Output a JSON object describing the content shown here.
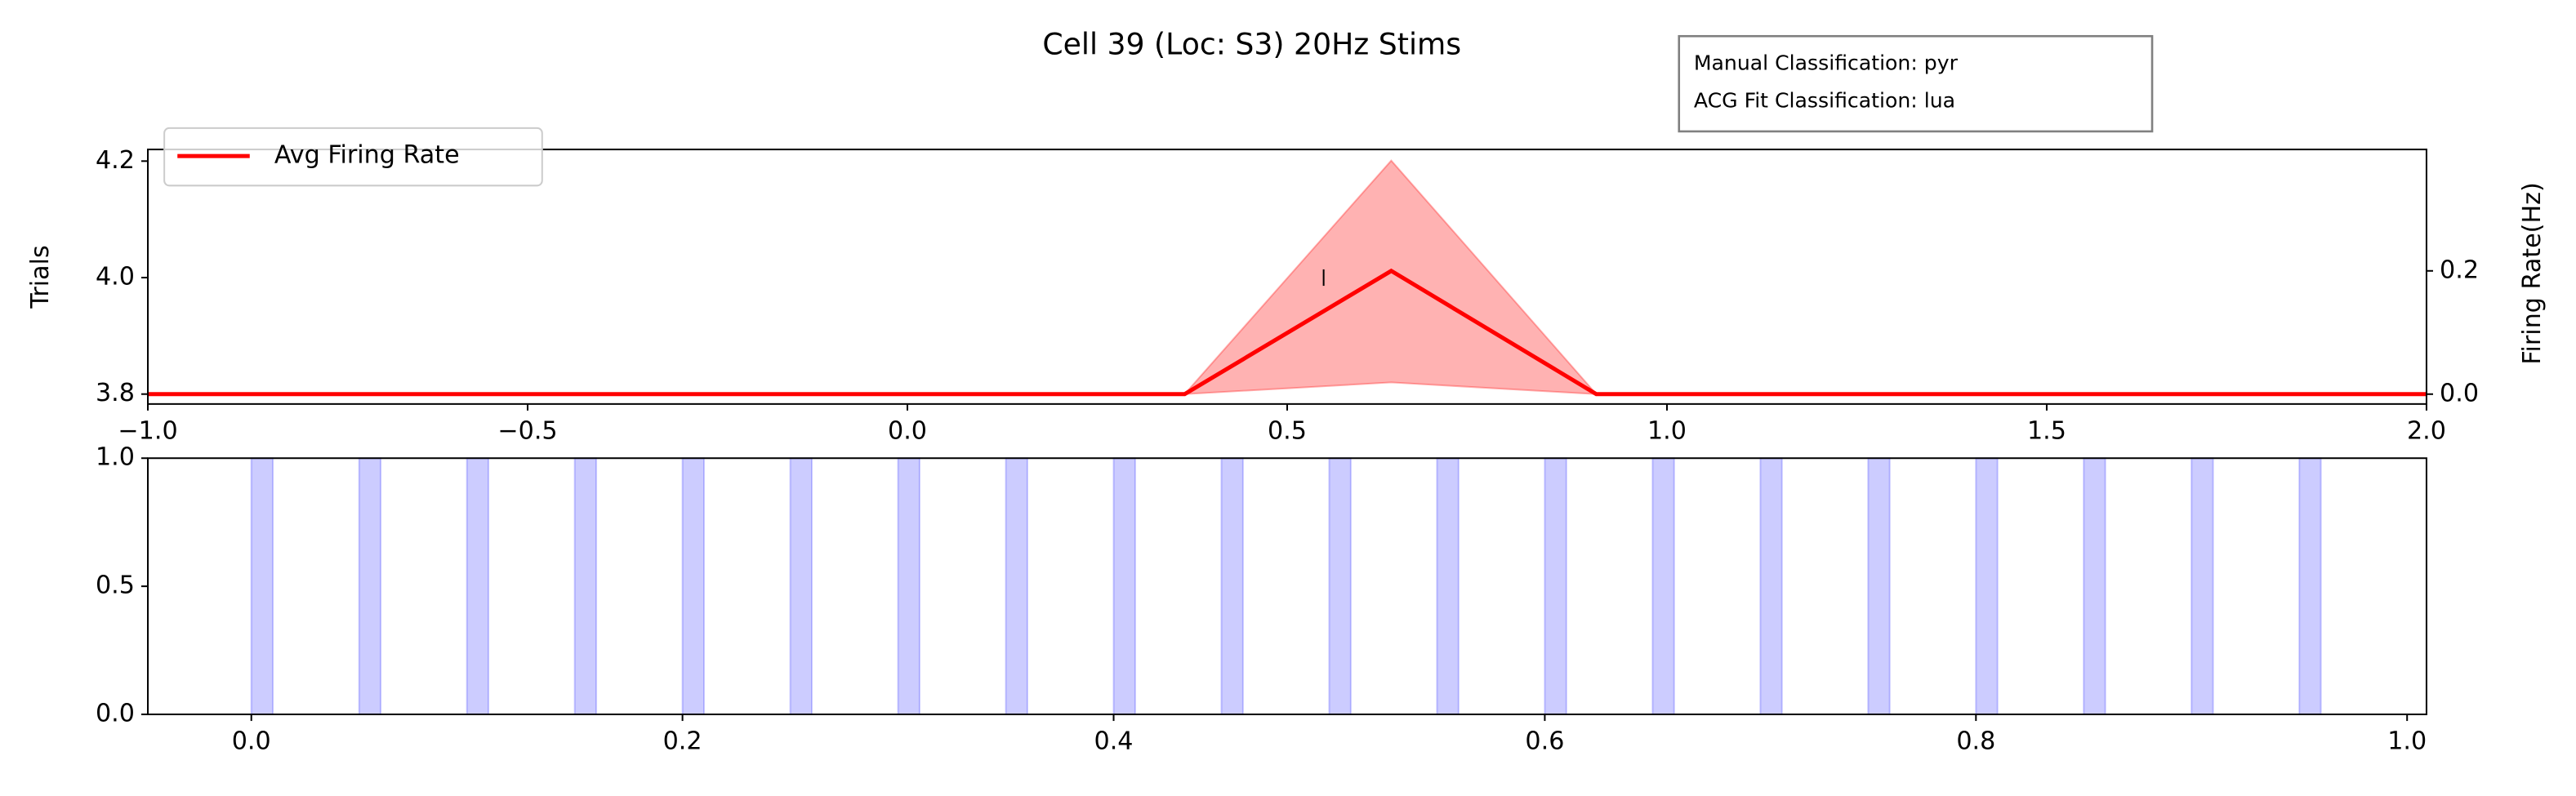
{
  "title": "Cell 39 (Loc: S3) 20Hz Stims",
  "annotation": [
    "Manual Classification: pyr",
    "ACG Fit Classification: lua"
  ],
  "chart_data": [
    {
      "type": "line",
      "ylabel": "Trials",
      "y2label": "Firing Rate(Hz)",
      "x": [
        -1.0,
        0.365,
        0.637,
        0.907,
        2.0
      ],
      "series": [
        {
          "name": "Avg Firing Rate",
          "color": "#ff0000",
          "axis": "y2",
          "values": [
            0,
            0,
            0.2,
            0,
            0
          ],
          "lower": [
            0,
            0,
            0.019,
            0,
            0
          ],
          "upper": [
            0,
            0,
            0.379,
            0,
            0
          ]
        }
      ],
      "spikes": {
        "x": [
          0.548
        ],
        "y": [
          4.0
        ]
      },
      "xlim": [
        -1.0,
        2.0
      ],
      "ylim": [
        3.783,
        4.22
      ],
      "y2lim": [
        -0.016,
        0.397
      ],
      "xticks": [
        {
          "value": -1.0,
          "label": "−1.0"
        },
        {
          "value": -0.5,
          "label": "−0.5"
        },
        {
          "value": 0.0,
          "label": "0.0"
        },
        0.5,
        {
          "value": 1.0,
          "label": "1.0"
        },
        1.5,
        {
          "value": 2.0,
          "label": "2.0"
        }
      ],
      "yticks": [
        3.8,
        {
          "value": 4.0,
          "label": "4.0"
        },
        4.2
      ],
      "y2ticks": [
        {
          "value": 0.0,
          "label": "0.0"
        },
        0.2
      ],
      "legend": "upper left"
    },
    {
      "type": "span",
      "color": "#0000ff",
      "spans": [
        [
          0.0,
          0.01
        ],
        [
          0.05,
          0.06
        ],
        [
          0.1,
          0.11
        ],
        [
          0.15,
          0.16
        ],
        [
          0.2,
          0.21
        ],
        [
          0.25,
          0.26
        ],
        [
          0.3,
          0.31
        ],
        [
          0.35,
          0.36
        ],
        [
          0.4,
          0.41
        ],
        [
          0.45,
          0.46
        ],
        [
          0.5,
          0.51
        ],
        [
          0.55,
          0.56
        ],
        [
          0.6,
          0.61
        ],
        [
          0.65,
          0.66
        ],
        [
          0.7,
          0.71
        ],
        [
          0.75,
          0.76
        ],
        [
          0.8,
          0.81
        ],
        [
          0.85,
          0.86
        ],
        [
          0.9,
          0.91
        ],
        [
          0.95,
          0.96
        ]
      ],
      "xlim": [
        -0.048,
        1.009
      ],
      "ylim": [
        0,
        1
      ],
      "xticks": [
        {
          "value": 0.0,
          "label": "0.0"
        },
        0.2,
        0.4,
        0.6,
        0.8,
        {
          "value": 1.0,
          "label": "1.0"
        }
      ],
      "yticks": [
        {
          "value": 0.0,
          "label": "0.0"
        },
        0.5,
        {
          "value": 1.0,
          "label": "1.0"
        }
      ]
    }
  ]
}
